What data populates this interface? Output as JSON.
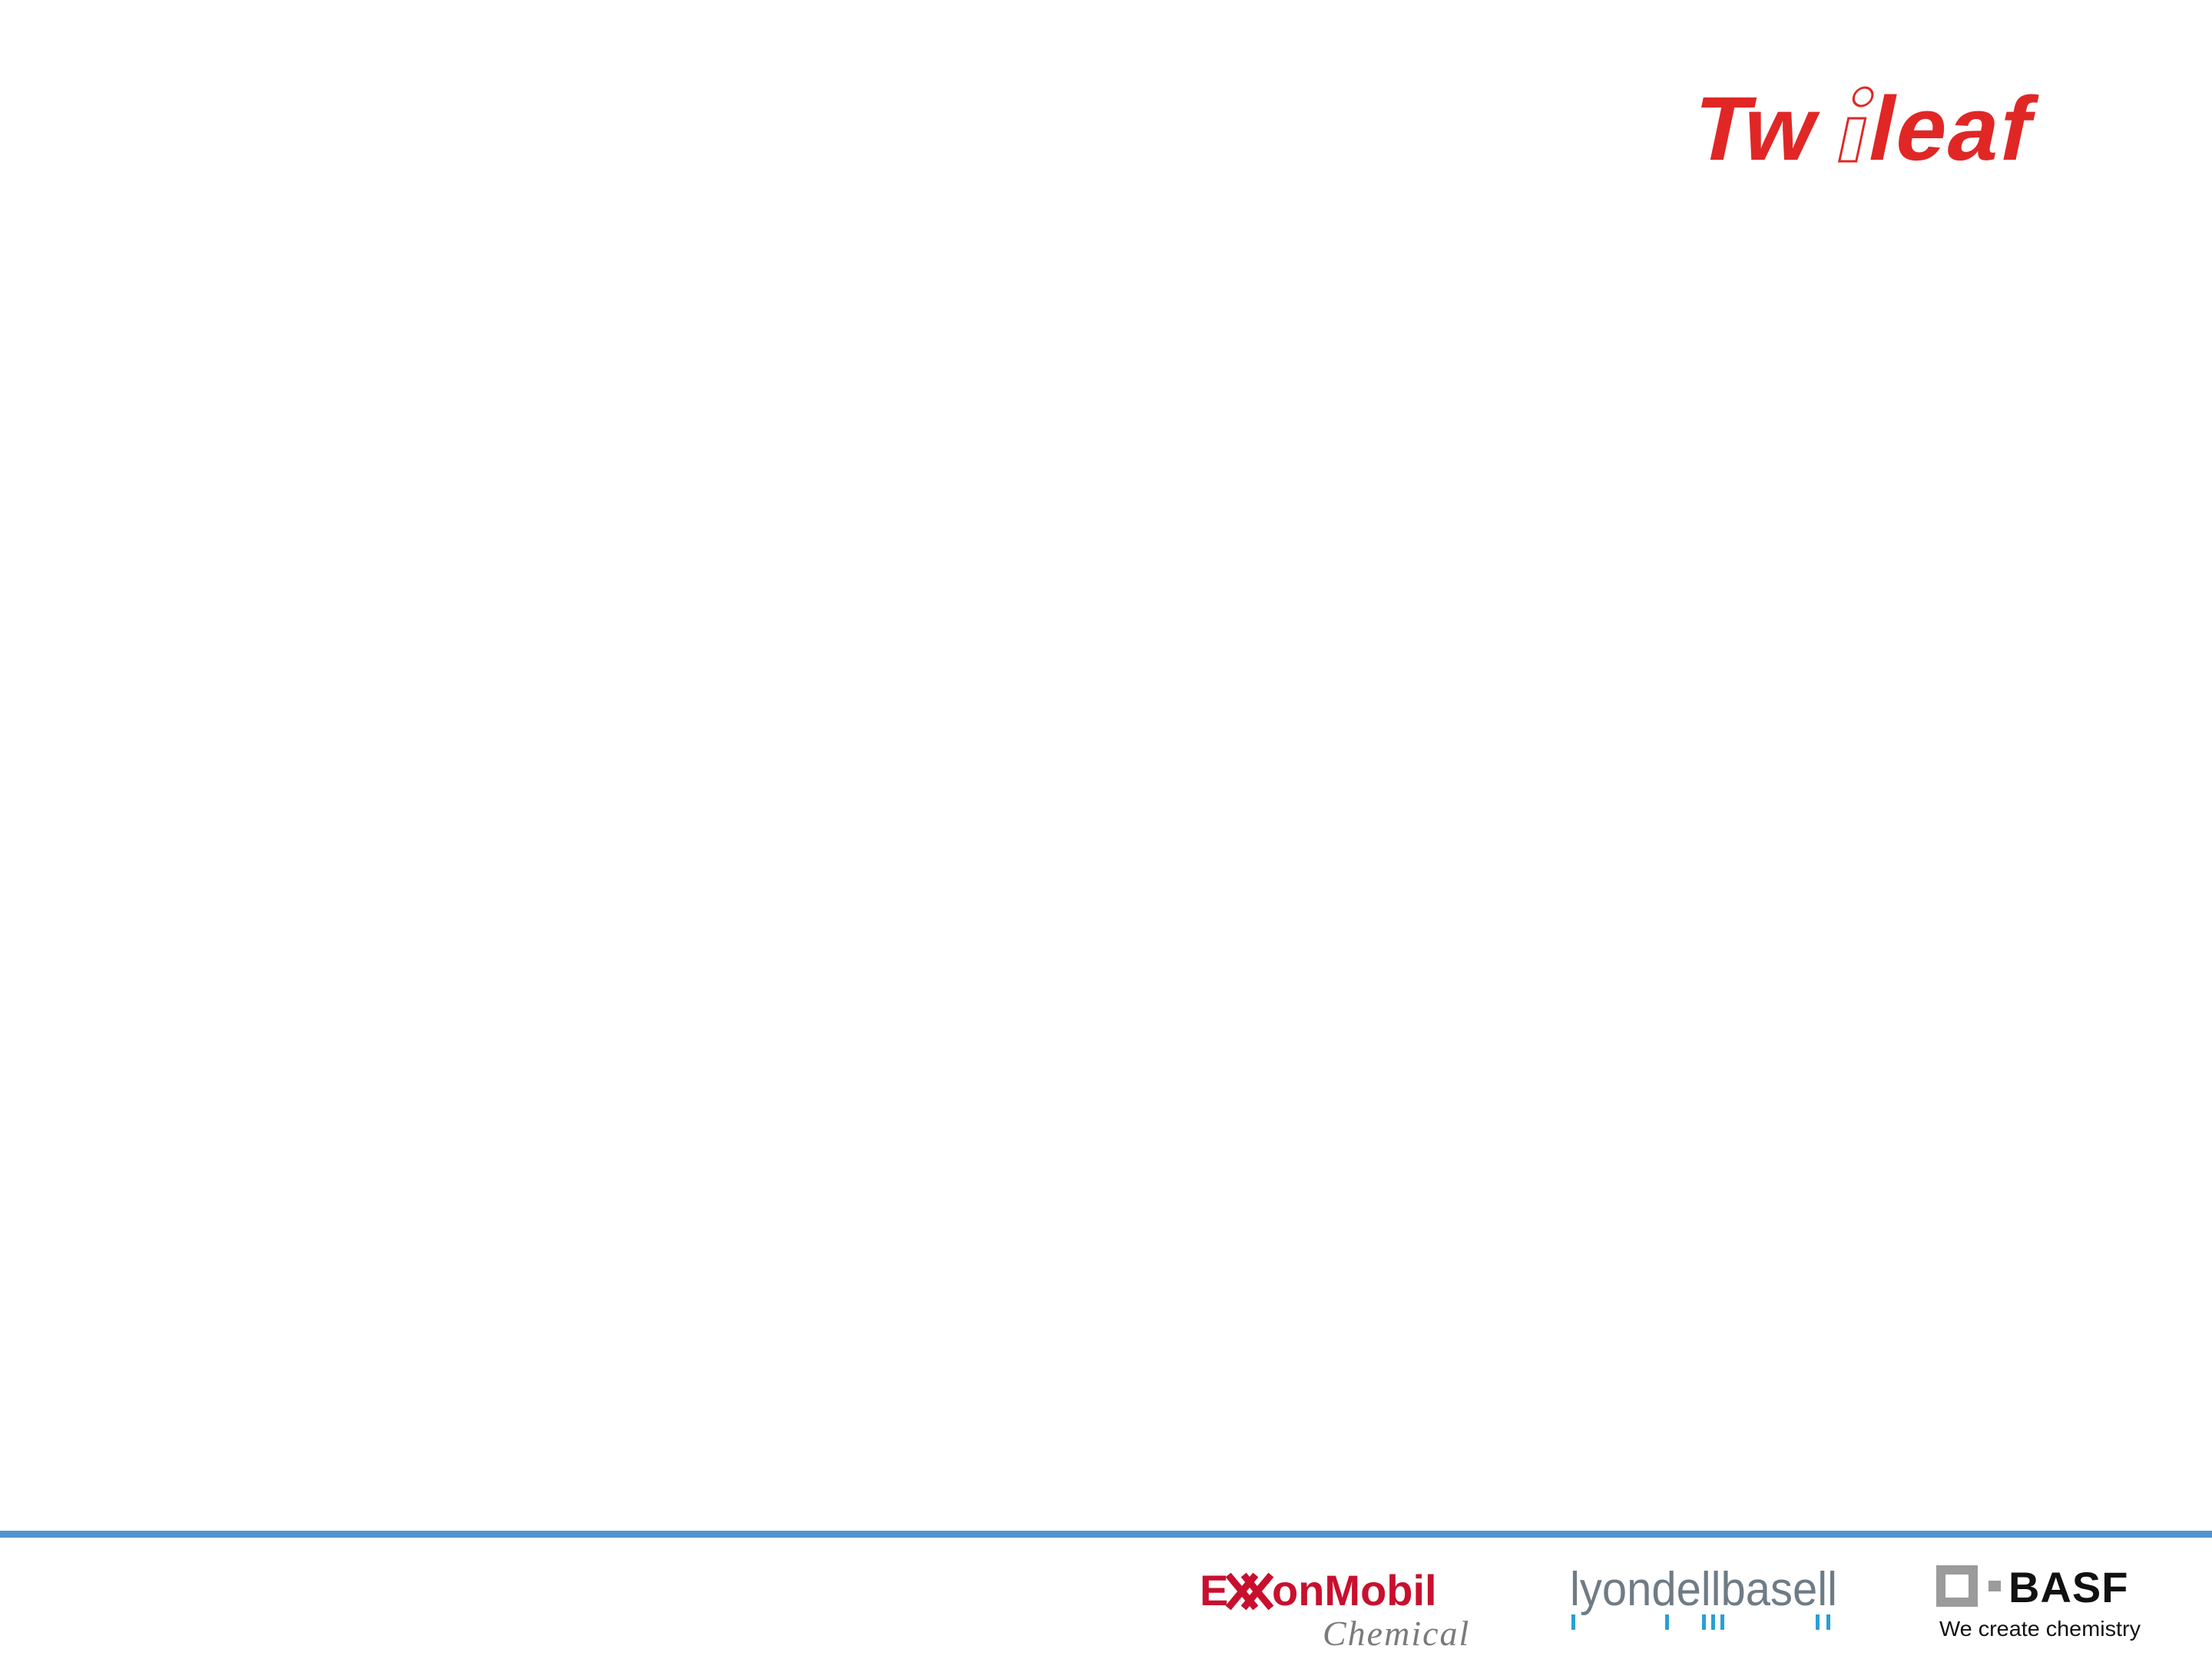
{
  "brand": {
    "logo_text": "Twinleaf",
    "logo_color": "#e02726"
  },
  "footer": {
    "rule_color": "#4f93cf",
    "partners": [
      {
        "name": "ExxonMobil",
        "subtitle": "Chemical",
        "color": "#c8102e",
        "subtitle_color": "#7a7a7a"
      },
      {
        "name": "lyondellbasell",
        "color": "#6f7c86",
        "accent_color": "#2a9fd6"
      },
      {
        "name": "BASF",
        "tagline": "We create chemistry",
        "color": "#111111",
        "mark_color": "#9b9b9b"
      }
    ]
  }
}
